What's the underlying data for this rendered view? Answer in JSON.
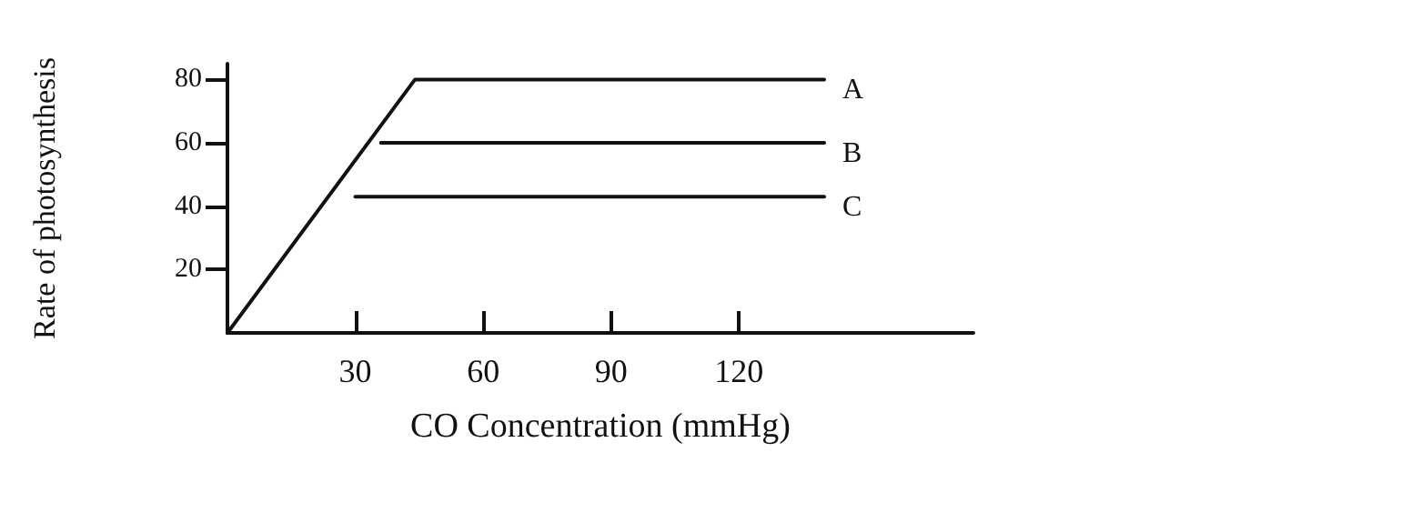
{
  "chart_data": {
    "type": "line",
    "xlabel": "CO Concentration (mmHg)",
    "ylabel": "Rate of photosynthesis",
    "xlim": [
      0,
      175
    ],
    "xticks": [
      30,
      60,
      90,
      120
    ],
    "ylim": [
      0,
      85
    ],
    "yticks": [
      20,
      40,
      60,
      80
    ],
    "grid": false,
    "legend": false,
    "marker": "none",
    "line_style": "solid",
    "series": [
      {
        "name": "A",
        "color": "#111111",
        "x": [
          0,
          44,
          140
        ],
        "values": [
          0,
          80,
          80
        ]
      },
      {
        "name": "B",
        "color": "#111111",
        "x": [
          36,
          140
        ],
        "values": [
          60,
          60
        ]
      },
      {
        "name": "C",
        "color": "#111111",
        "x": [
          30,
          140
        ],
        "values": [
          43,
          43
        ]
      }
    ]
  }
}
